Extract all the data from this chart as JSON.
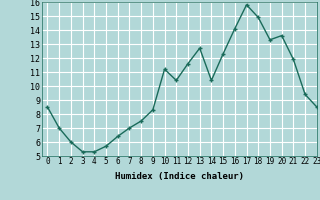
{
  "x": [
    0,
    1,
    2,
    3,
    4,
    5,
    6,
    7,
    8,
    9,
    10,
    11,
    12,
    13,
    14,
    15,
    16,
    17,
    18,
    19,
    20,
    21,
    22,
    23
  ],
  "y": [
    8.5,
    7.0,
    6.0,
    5.3,
    5.3,
    5.7,
    6.4,
    7.0,
    7.5,
    8.3,
    11.2,
    10.4,
    11.6,
    12.7,
    10.4,
    12.3,
    14.1,
    15.8,
    14.9,
    13.3,
    13.6,
    11.9,
    9.4,
    8.5
  ],
  "xlabel": "Humidex (Indice chaleur)",
  "ylim": [
    5,
    16
  ],
  "xlim": [
    -0.5,
    23
  ],
  "yticks": [
    5,
    6,
    7,
    8,
    9,
    10,
    11,
    12,
    13,
    14,
    15,
    16
  ],
  "xticks": [
    0,
    1,
    2,
    3,
    4,
    5,
    6,
    7,
    8,
    9,
    10,
    11,
    12,
    13,
    14,
    15,
    16,
    17,
    18,
    19,
    20,
    21,
    22,
    23
  ],
  "xtick_labels": [
    "0",
    "1",
    "2",
    "3",
    "4",
    "5",
    "6",
    "7",
    "8",
    "9",
    "10",
    "11",
    "12",
    "13",
    "14",
    "15",
    "16",
    "17",
    "18",
    "19",
    "20",
    "21",
    "22",
    "23"
  ],
  "line_color": "#1a6b5a",
  "marker": "+",
  "bg_color": "#b2d8d8",
  "grid_color": "#ffffff",
  "xlabel_fontsize": 6.5,
  "tick_fontsize": 5.5,
  "ytick_fontsize": 6.0,
  "linewidth": 1.0,
  "markersize": 3,
  "markeredgewidth": 1.0
}
